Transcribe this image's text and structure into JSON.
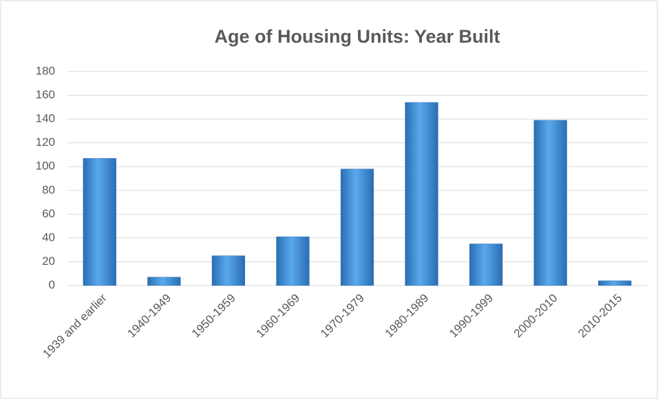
{
  "chart_data": {
    "type": "bar",
    "title": "Age of Housing Units: Year Built",
    "categories": [
      "1939 and earlier",
      "1940-1949",
      "1950-1959",
      "1960-1969",
      "1970-1979",
      "1980-1989",
      "1990-1999",
      "2000-2010",
      "2010-2015"
    ],
    "values": [
      107,
      7,
      25,
      41,
      98,
      154,
      35,
      139,
      4
    ],
    "color": "#3d8fd6",
    "ylim": [
      0,
      180
    ],
    "yticks": [
      0,
      20,
      40,
      60,
      80,
      100,
      120,
      140,
      160,
      180
    ],
    "grid": true
  }
}
